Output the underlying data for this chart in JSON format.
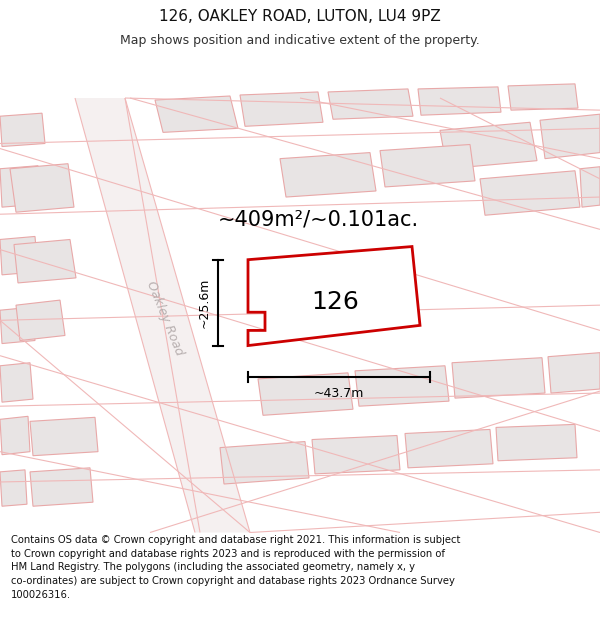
{
  "title": "126, OAKLEY ROAD, LUTON, LU4 9PZ",
  "subtitle": "Map shows position and indicative extent of the property.",
  "area_text": "~409m²/~0.101ac.",
  "label_126": "126",
  "dim_height": "~25.6m",
  "dim_width": "~43.7m",
  "road_label": "Oakley Road",
  "footer_text": "Contains OS data © Crown copyright and database right 2021. This information is subject\nto Crown copyright and database rights 2023 and is reproduced with the permission of\nHM Land Registry. The polygons (including the associated geometry, namely x, y\nco-ordinates) are subject to Crown copyright and database rights 2023 Ordnance Survey\n100026316.",
  "map_bg": "#f8f6f6",
  "building_face": "#e8e4e4",
  "building_edge": "#e8a8a8",
  "road_line": "#f0b8b8",
  "road_fill": "#f8f4f4",
  "road_label_color": "#b8b0b0",
  "red_line": "#cc0000",
  "prop_face": "#ffffff",
  "title_color": "#111111",
  "subtitle_color": "#333333",
  "footer_color": "#111111",
  "dim_color": "#222222",
  "title_fs": 11,
  "subtitle_fs": 9,
  "area_fs": 15,
  "label_fs": 18,
  "dim_fs": 9,
  "road_label_fs": 9,
  "footer_fs": 7.2
}
